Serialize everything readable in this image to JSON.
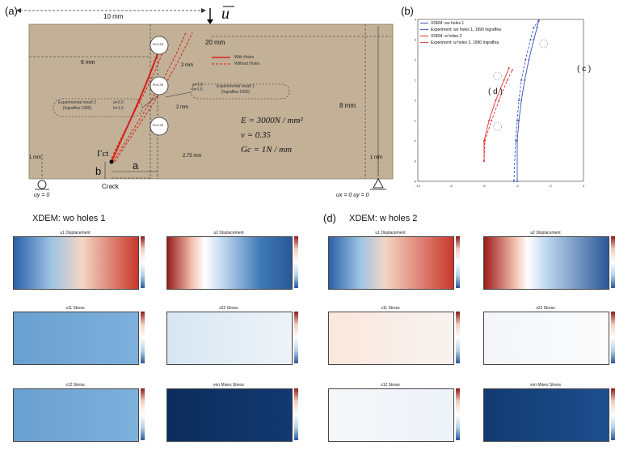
{
  "panel_a": {
    "label": "(a)",
    "dim_10mm": "10 mm",
    "load_symbol": "u",
    "dim_20mm": "20 mm",
    "dim_6mm": "6 mm",
    "dim_2mm_top": "2 mm",
    "dim_2mm_mid": "2 mm",
    "dim_8mm": "8 mm",
    "dim_275mm": "2.75 mm",
    "dim_1mm_left": "1 mm",
    "dim_1mm_right": "1 mm",
    "legend_with_holes": "With Holes",
    "legend_without_holes": "Without Holes",
    "exp2_params": [
      "a=2.0",
      "b=1.0"
    ],
    "exp2_label": [
      "Experimental result 2",
      "(Ingraffea 1990)"
    ],
    "exp1_params": [
      "a=1.0",
      "b=1.5"
    ],
    "exp1_label": [
      "Experimental result 1",
      "(Ingraffea 1990)"
    ],
    "hole_label": "R=0.25",
    "eq_E": "E = 3000N / mm²",
    "eq_nu": "ν = 0.35",
    "eq_Gc": "Gc = 1N / mm",
    "gamma": "Γct",
    "b": "b",
    "a": "a",
    "crack": "Crack",
    "bc_left": "uy = 0",
    "bc_right": "ux = 0  uy = 0"
  },
  "panel_b": {
    "label": "(b)",
    "callout_c": "( c )",
    "callout_d": "( d )",
    "legend": [
      "XDEM: wo holes 1",
      "Experiment: wo holes 1, 1990 Ingraffea",
      "XDEM: w holes 2",
      "Experiment: w holes 2, 1990 Ingraffea"
    ],
    "colors": {
      "blue": "#3a50b4",
      "red": "#e0302a"
    }
  },
  "chart_data": {
    "type": "line",
    "xlim": [
      -10,
      0
    ],
    "ylim": [
      -4,
      4
    ],
    "xticks": [
      -10,
      -8,
      -6,
      -4,
      -2,
      0
    ],
    "yticks": [
      -4,
      -3,
      -2,
      -1,
      0,
      1,
      2,
      3,
      4
    ],
    "series": [
      {
        "name": "XDEM: wo holes 1",
        "color": "#3a50b4",
        "dash": false,
        "points": [
          [
            -4.0,
            -4.0
          ],
          [
            -4.0,
            -2.0
          ],
          [
            -3.9,
            -1.0
          ],
          [
            -3.75,
            0.0
          ],
          [
            -3.55,
            1.0
          ],
          [
            -3.3,
            2.0
          ],
          [
            -3.0,
            3.0
          ],
          [
            -2.8,
            3.6
          ],
          [
            -2.7,
            3.95
          ]
        ]
      },
      {
        "name": "Experiment: wo holes 1, 1990 Ingraffea",
        "color": "#3a50b4",
        "dash": true,
        "points": [
          [
            -4.2,
            -4.0
          ],
          [
            -4.1,
            -2.0
          ],
          [
            -4.0,
            -1.0
          ],
          [
            -3.9,
            0.0
          ],
          [
            -3.75,
            1.0
          ],
          [
            -3.5,
            2.0
          ],
          [
            -3.2,
            3.0
          ],
          [
            -3.0,
            3.6
          ],
          [
            -2.7,
            3.95
          ]
        ]
      },
      {
        "name": "XDEM: w holes 2",
        "color": "#e0302a",
        "dash": false,
        "points": [
          [
            -6.0,
            -3.0
          ],
          [
            -6.0,
            -2.0
          ],
          [
            -5.7,
            -1.0
          ],
          [
            -5.3,
            0.0
          ],
          [
            -4.8,
            1.0
          ],
          [
            -4.5,
            1.6
          ]
        ]
      },
      {
        "name": "Experiment: w holes 2, 1990 Ingraffea",
        "color": "#e0302a",
        "dash": true,
        "points": [
          [
            -6.0,
            -3.0
          ],
          [
            -5.95,
            -2.0
          ],
          [
            -5.55,
            -1.0
          ],
          [
            -5.1,
            0.0
          ],
          [
            -4.6,
            1.0
          ],
          [
            -4.3,
            1.5
          ]
        ]
      }
    ]
  },
  "panel_lower": {
    "left_title": "XDEM:  wo holes 1",
    "right_label": "(d)",
    "right_title": "XDEM:  w holes 2",
    "plot_titles": [
      "u1 Displacement",
      "u2 Displacement",
      "s11 Stress",
      "s22 Stress",
      "s12 Stress",
      "von Mises Stress"
    ]
  }
}
